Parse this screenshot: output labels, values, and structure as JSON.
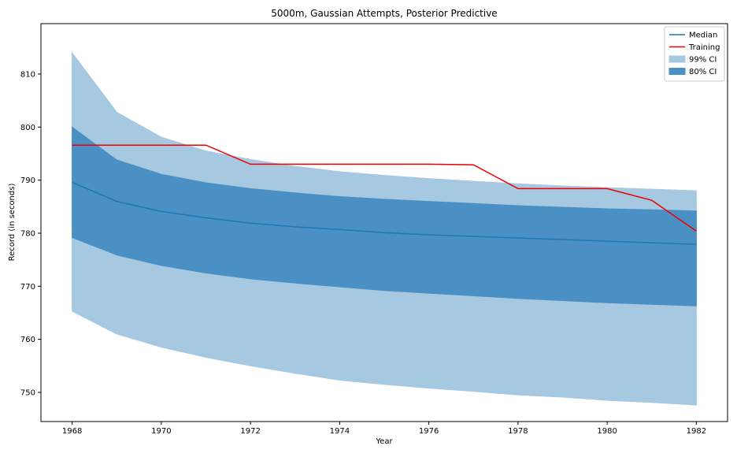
{
  "chart_data": {
    "type": "line",
    "title": "5000m, Gaussian Attempts, Posterior Predictive",
    "xlabel": "Year",
    "ylabel": "Record (in seconds)",
    "xlim": [
      1967.3,
      1982.7
    ],
    "ylim": [
      744.5,
      819.5
    ],
    "x": [
      1968,
      1969,
      1970,
      1971,
      1972,
      1973,
      1974,
      1975,
      1976,
      1977,
      1978,
      1979,
      1980,
      1981,
      1982
    ],
    "xticks": [
      1968,
      1970,
      1972,
      1974,
      1976,
      1978,
      1980,
      1982
    ],
    "yticks": [
      750,
      760,
      770,
      780,
      790,
      800,
      810
    ],
    "grid": false,
    "legend_position": "top-right",
    "series": [
      {
        "name": "Median",
        "kind": "line",
        "color": "#1f77b4",
        "values": [
          789.6,
          786.0,
          784.1,
          782.9,
          781.9,
          781.2,
          780.7,
          780.1,
          779.7,
          779.4,
          779.1,
          778.8,
          778.5,
          778.2,
          777.9
        ]
      },
      {
        "name": "Training",
        "kind": "line",
        "color": "#ee0000",
        "values": [
          796.6,
          796.6,
          796.6,
          796.6,
          793.0,
          793.0,
          793.0,
          793.0,
          793.0,
          792.9,
          788.4,
          788.4,
          788.4,
          786.2,
          780.4
        ]
      },
      {
        "name": "99% CI",
        "kind": "band",
        "color": "#a6c8e0",
        "lower": [
          765.3,
          761.0,
          758.5,
          756.6,
          755.0,
          753.6,
          752.3,
          751.5,
          750.8,
          750.2,
          749.5,
          749.1,
          748.5,
          748.1,
          747.6
        ],
        "upper": [
          814.0,
          802.8,
          798.1,
          795.5,
          793.9,
          792.6,
          791.6,
          790.9,
          790.3,
          789.8,
          789.3,
          788.9,
          788.6,
          788.3,
          788.0
        ]
      },
      {
        "name": "80% CI",
        "kind": "band",
        "color": "#4a90c4",
        "lower": [
          779.2,
          775.9,
          773.9,
          772.5,
          771.4,
          770.6,
          769.9,
          769.2,
          768.7,
          768.2,
          767.7,
          767.3,
          766.9,
          766.6,
          766.3
        ],
        "upper": [
          800.0,
          793.8,
          791.1,
          789.5,
          788.4,
          787.6,
          786.9,
          786.4,
          786.0,
          785.6,
          785.2,
          784.9,
          784.6,
          784.4,
          784.2
        ]
      }
    ]
  }
}
